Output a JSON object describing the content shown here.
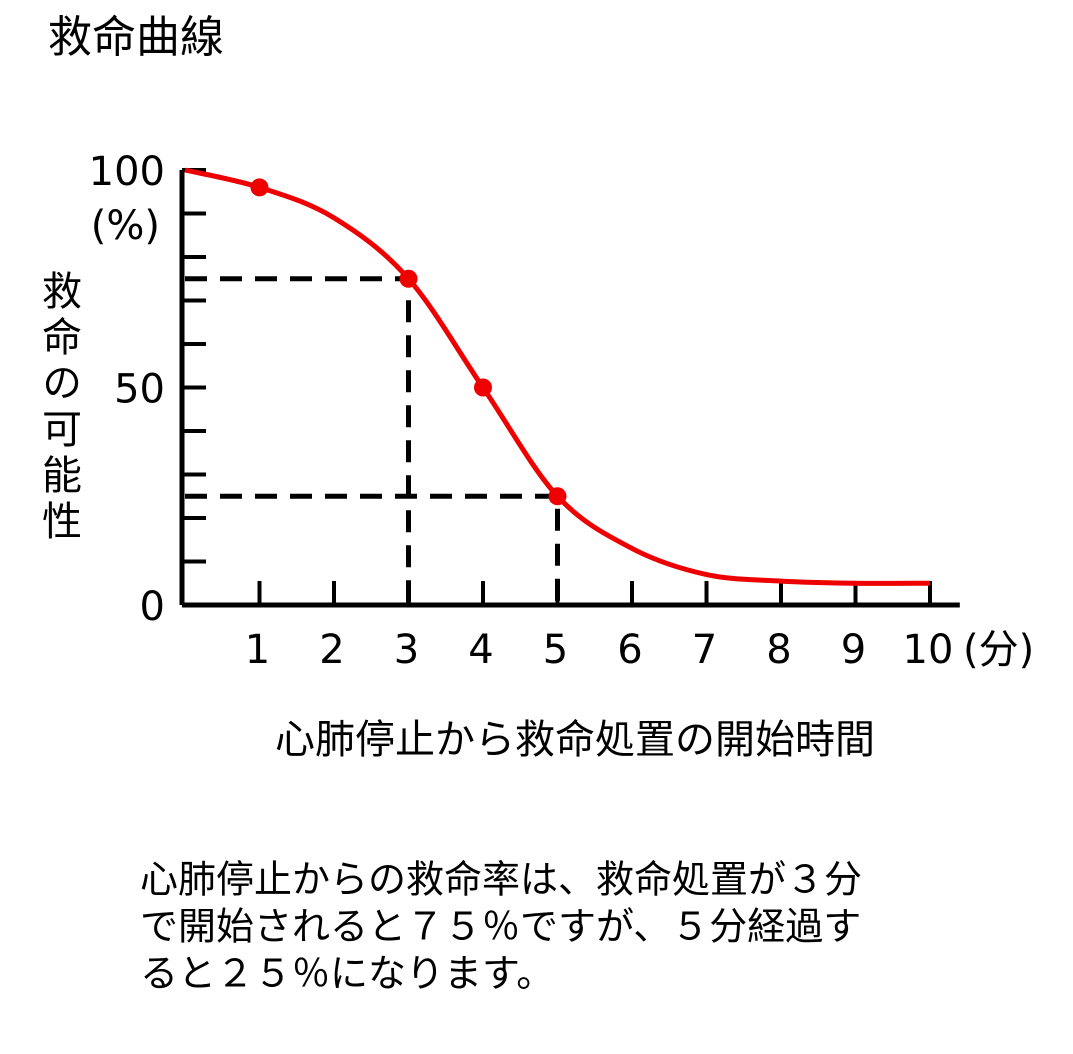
{
  "chart_data": {
    "type": "line",
    "title": "救命曲線",
    "y_label": "救命の可能性",
    "y_unit": "(%)",
    "x_label": "心肺停止から救命処置の開始時間",
    "x_unit": "(分)",
    "x": [
      0,
      1,
      2,
      3,
      4,
      5,
      6,
      7,
      8,
      9,
      10
    ],
    "series": [
      {
        "color": "#ee0000",
        "values": [
          100,
          96,
          89,
          75,
          50,
          25,
          13,
          7,
          5.5,
          5,
          5
        ]
      }
    ],
    "points": {
      "x": [
        1,
        3,
        4,
        5
      ],
      "values": [
        96,
        75,
        50,
        25
      ],
      "color": "#ee0000"
    },
    "guides": [
      {
        "x": 3,
        "y": 75
      },
      {
        "x": 5,
        "y": 25
      }
    ],
    "xlim": [
      0,
      10.4
    ],
    "ylim": [
      0,
      100
    ],
    "xticks": [
      1,
      2,
      3,
      4,
      5,
      6,
      7,
      8,
      9,
      10
    ],
    "yticks": [
      0,
      50,
      100
    ],
    "yminorticks": [
      10,
      20,
      30,
      40,
      60,
      70,
      80,
      90
    ],
    "note": [
      "心肺停止からの救命率は、救命処置が３分",
      "で開始されると７５％ですが、５分経過す",
      "ると２５％になります。"
    ]
  }
}
